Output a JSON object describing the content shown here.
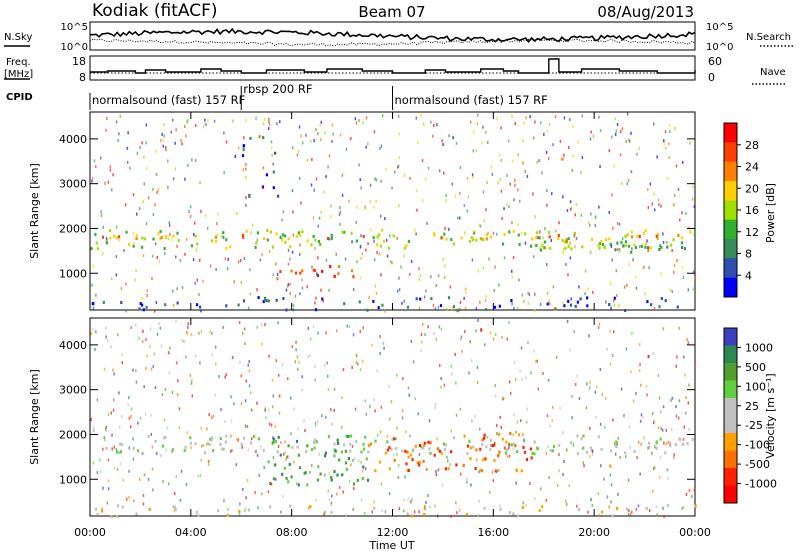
{
  "header": {
    "station": "Kodiak (fitACF)",
    "beam": "Beam 07",
    "date": "08/Aug/2013"
  },
  "top_strip": {
    "left_label": "N.Sky",
    "right_label": "N.Search",
    "left_ticks": [
      "10^5",
      "10^0"
    ],
    "right_ticks": [
      "10^5",
      "10^0"
    ]
  },
  "freq_strip": {
    "left_label_line1": "Freq.",
    "left_label_line2": "[MHz]",
    "right_label": "Nave",
    "left_ticks": [
      "18",
      "8"
    ],
    "right_ticks": [
      "60",
      "0"
    ]
  },
  "cpid": {
    "label": "CPID",
    "segments": [
      {
        "text": "normalsound (fast) 157 RF",
        "start_hour": 0,
        "end_hour": 6
      },
      {
        "text": "rbsp 200 RF",
        "start_hour": 6,
        "end_hour": 12
      },
      {
        "text": "normalsound (fast) 157 RF",
        "start_hour": 12,
        "end_hour": 24
      }
    ]
  },
  "colors": {
    "power_scale": [
      "#0000ff",
      "#3050b0",
      "#3a8a5a",
      "#30b030",
      "#a0e000",
      "#ffd000",
      "#ff8000",
      "#ff4000",
      "#ff0000"
    ],
    "velocity_scale": [
      "#3a40c0",
      "#2a8a50",
      "#50a030",
      "#60d040",
      "#c0c0c0",
      "#c0c0c0",
      "#ffa000",
      "#ff7000",
      "#ff2000",
      "#ff0000"
    ]
  },
  "chart_data": [
    {
      "type": "heatmap",
      "name": "power",
      "ylabel": "Slant Range [km]",
      "colorbar_label": "Power [dB]",
      "colorbar_ticks": [
        "28",
        "24",
        "20",
        "16",
        "12",
        "8",
        "4"
      ],
      "yticks": [
        "4000",
        "3000",
        "2000",
        "1000"
      ],
      "ylim": [
        180,
        4600
      ],
      "xlim": [
        0,
        24
      ],
      "features": [
        {
          "t0": 0.0,
          "t1": 24.0,
          "r0": 1580,
          "r1": 2000,
          "level": 4,
          "density": 0.55
        },
        {
          "t0": 0.0,
          "t1": 24.0,
          "r0": 1780,
          "r1": 1880,
          "level": 6,
          "density": 0.5
        },
        {
          "t0": 7.0,
          "t1": 10.5,
          "r0": 900,
          "r1": 1200,
          "level": 7,
          "density": 0.6
        },
        {
          "t0": 17.5,
          "t1": 24.0,
          "r0": 1500,
          "r1": 1750,
          "level": 3,
          "density": 0.65
        },
        {
          "t0": 0.0,
          "t1": 24.0,
          "r0": 200,
          "r1": 500,
          "level": 1,
          "density": 0.35
        },
        {
          "t0": 6.0,
          "t1": 7.5,
          "r0": 2700,
          "r1": 4200,
          "level": 1,
          "density": 0.25
        }
      ]
    },
    {
      "type": "heatmap",
      "name": "velocity",
      "xlabel": "Time UT",
      "ylabel": "Slant Range [km]",
      "colorbar_label": "Velocity [m s⁻¹]",
      "colorbar_ticks": [
        "1000",
        "500",
        "100",
        "25",
        "-25",
        "-100",
        "-500",
        "-1000"
      ],
      "yticks": [
        "4000",
        "3000",
        "2000",
        "1000"
      ],
      "xticks": [
        "00:00",
        "04:00",
        "08:00",
        "12:00",
        "16:00",
        "20:00",
        "00:00"
      ],
      "ylim": [
        180,
        4600
      ],
      "xlim": [
        0,
        24
      ],
      "features": [
        {
          "t0": 0.0,
          "t1": 24.0,
          "r0": 1600,
          "r1": 2000,
          "level": 4,
          "density": 0.55
        },
        {
          "t0": 7.0,
          "t1": 11.0,
          "r0": 900,
          "r1": 2000,
          "level": 2,
          "density": 0.5
        },
        {
          "t0": 11.0,
          "t1": 17.5,
          "r0": 1200,
          "r1": 2100,
          "level": 7,
          "density": 0.5
        },
        {
          "t0": 0.0,
          "t1": 24.0,
          "r0": 200,
          "r1": 450,
          "level": 5,
          "density": 0.3
        }
      ]
    }
  ]
}
